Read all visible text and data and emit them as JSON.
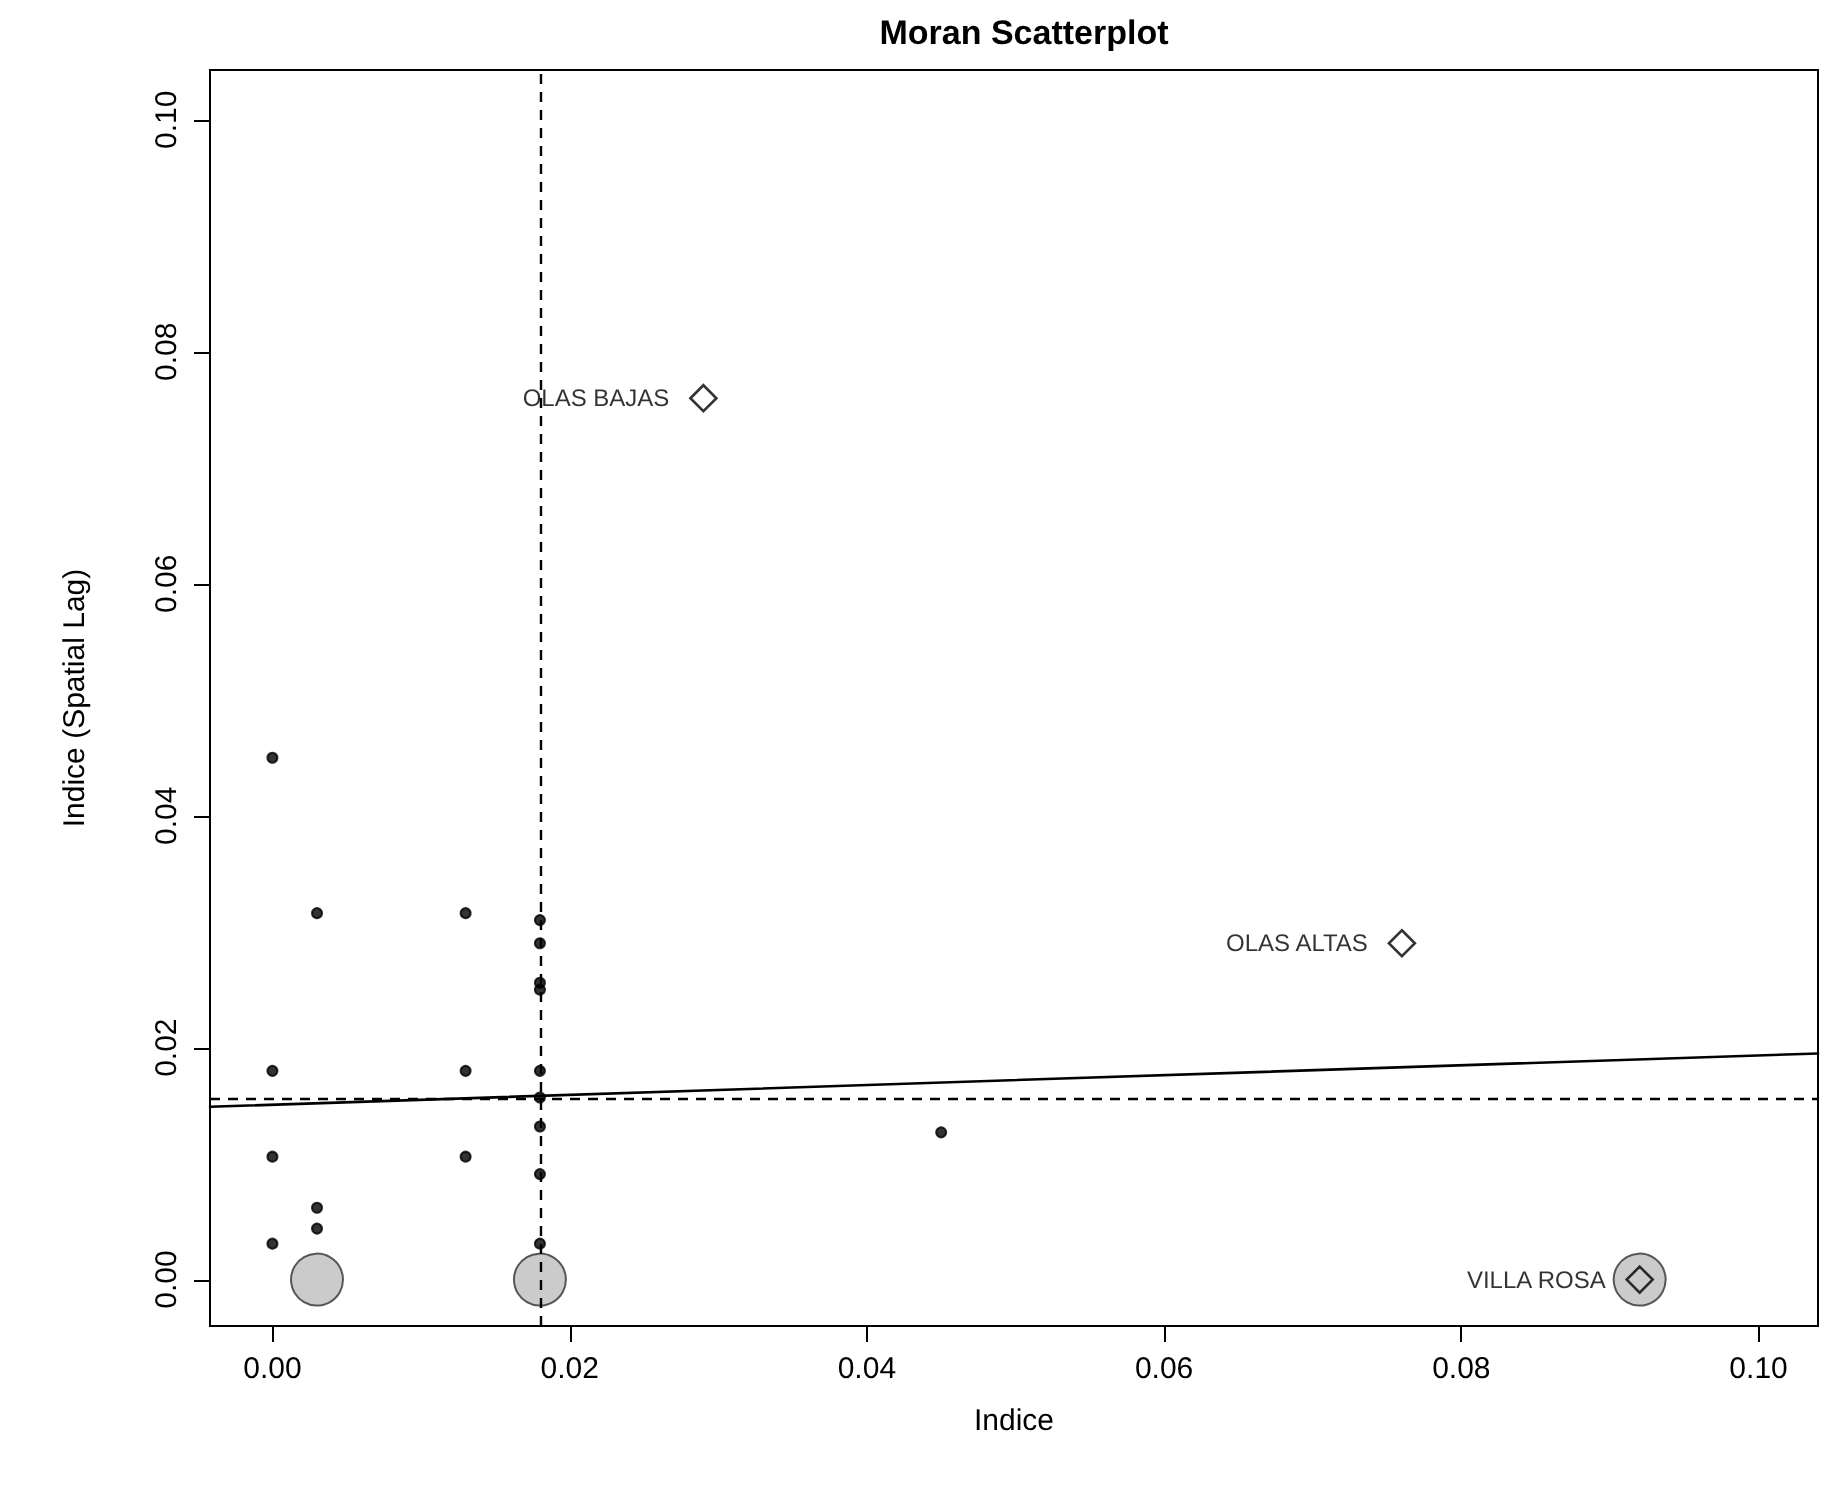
{
  "chart_data": {
    "type": "scatter",
    "title": "Moran Scatterplot",
    "xlabel": "Indice",
    "ylabel": "Indice (Spatial Lag)",
    "xlim": [
      -0.0042,
      0.104
    ],
    "ylim": [
      -0.004,
      0.1043
    ],
    "xticks": [
      {
        "value": 0,
        "label": "0.00"
      },
      0.02,
      0.04,
      0.06,
      0.08,
      {
        "value": 0.1,
        "label": "0.10"
      }
    ],
    "yticks": [
      {
        "value": 0,
        "label": "0.00"
      },
      0.02,
      0.04,
      0.06,
      0.08,
      {
        "value": 0.1,
        "label": "0.10"
      }
    ],
    "grid": false,
    "series": [
      {
        "type": "scatter",
        "marker": "circle",
        "color": "#bebebe",
        "x": [
          0.003,
          0.018,
          0.092
        ],
        "values": [
          0,
          0,
          0
        ]
      },
      {
        "type": "scatter",
        "marker": "circle",
        "color": "#000000",
        "x": [
          0,
          0.003,
          0.013,
          0.018,
          0.018,
          0.018,
          0.018,
          0,
          0.013,
          0.018,
          0.018,
          0.018,
          0,
          0.013,
          0.018,
          0.003,
          0.003,
          0,
          0.018,
          0.045
        ],
        "values": [
          0.045,
          0.0316,
          0.0316,
          0.031,
          0.029,
          0.0256,
          0.025,
          0.018,
          0.018,
          0.018,
          0.0157,
          0.0132,
          0.0106,
          0.0106,
          0.0091,
          0.0062,
          0.0044,
          0.0031,
          0.0031,
          0.0127
        ]
      },
      {
        "type": "scatter",
        "marker": "diamond",
        "color": "#000000",
        "x": [
          0.029,
          0.076,
          0.092
        ],
        "values": [
          0.076,
          0.029,
          0
        ]
      },
      {
        "type": "line",
        "line_style": "solid",
        "marker": "none",
        "color": "#000000",
        "x": [
          -0.0042,
          0.104
        ],
        "values": [
          0.0149,
          0.0195
        ]
      }
    ],
    "ref_lines": [
      {
        "axis": "x",
        "value": 0.018,
        "line_style": "dashed"
      },
      {
        "axis": "y",
        "value": 0.0157,
        "line_style": "dashed"
      }
    ],
    "annotations": [
      {
        "text": "OLAS BAJAS",
        "x": 0.029,
        "y": 0.076
      },
      {
        "text": "OLAS ALTAS",
        "x": 0.076,
        "y": 0.029
      },
      {
        "text": "VILLA ROSA",
        "x": 0.092,
        "y": 0
      }
    ]
  }
}
